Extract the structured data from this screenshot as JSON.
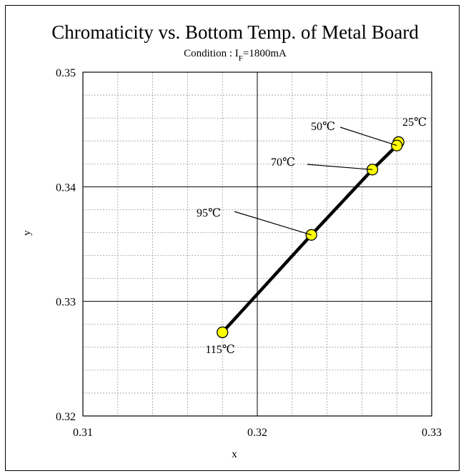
{
  "chart_data": {
    "type": "scatter",
    "title": "Chromaticity vs. Bottom Temp. of Metal Board",
    "subtitle": {
      "prefix": "Condition : ",
      "symbol": "I",
      "subscript": "F",
      "suffix": "=1800mA"
    },
    "xlabel": "x",
    "ylabel": "y",
    "xlim": [
      0.31,
      0.33
    ],
    "ylim": [
      0.32,
      0.35
    ],
    "x_ticks": [
      "0.31",
      "0.32",
      "0.33"
    ],
    "y_ticks": [
      "0.32",
      "0.33",
      "0.34",
      "0.35"
    ],
    "x_major_step": 0.01,
    "y_major_step": 0.01,
    "x_minor_step": 0.002,
    "y_minor_step": 0.002,
    "grid": true,
    "line_color": "#000000",
    "marker_color": "#ffff00",
    "points": [
      {
        "label": "25℃",
        "x": 0.3281,
        "y": 0.3439
      },
      {
        "label": "50℃",
        "x": 0.328,
        "y": 0.3436
      },
      {
        "label": "70℃",
        "x": 0.3266,
        "y": 0.3415
      },
      {
        "label": "95℃",
        "x": 0.3231,
        "y": 0.3358
      },
      {
        "label": "115℃",
        "x": 0.318,
        "y": 0.3273
      }
    ]
  }
}
